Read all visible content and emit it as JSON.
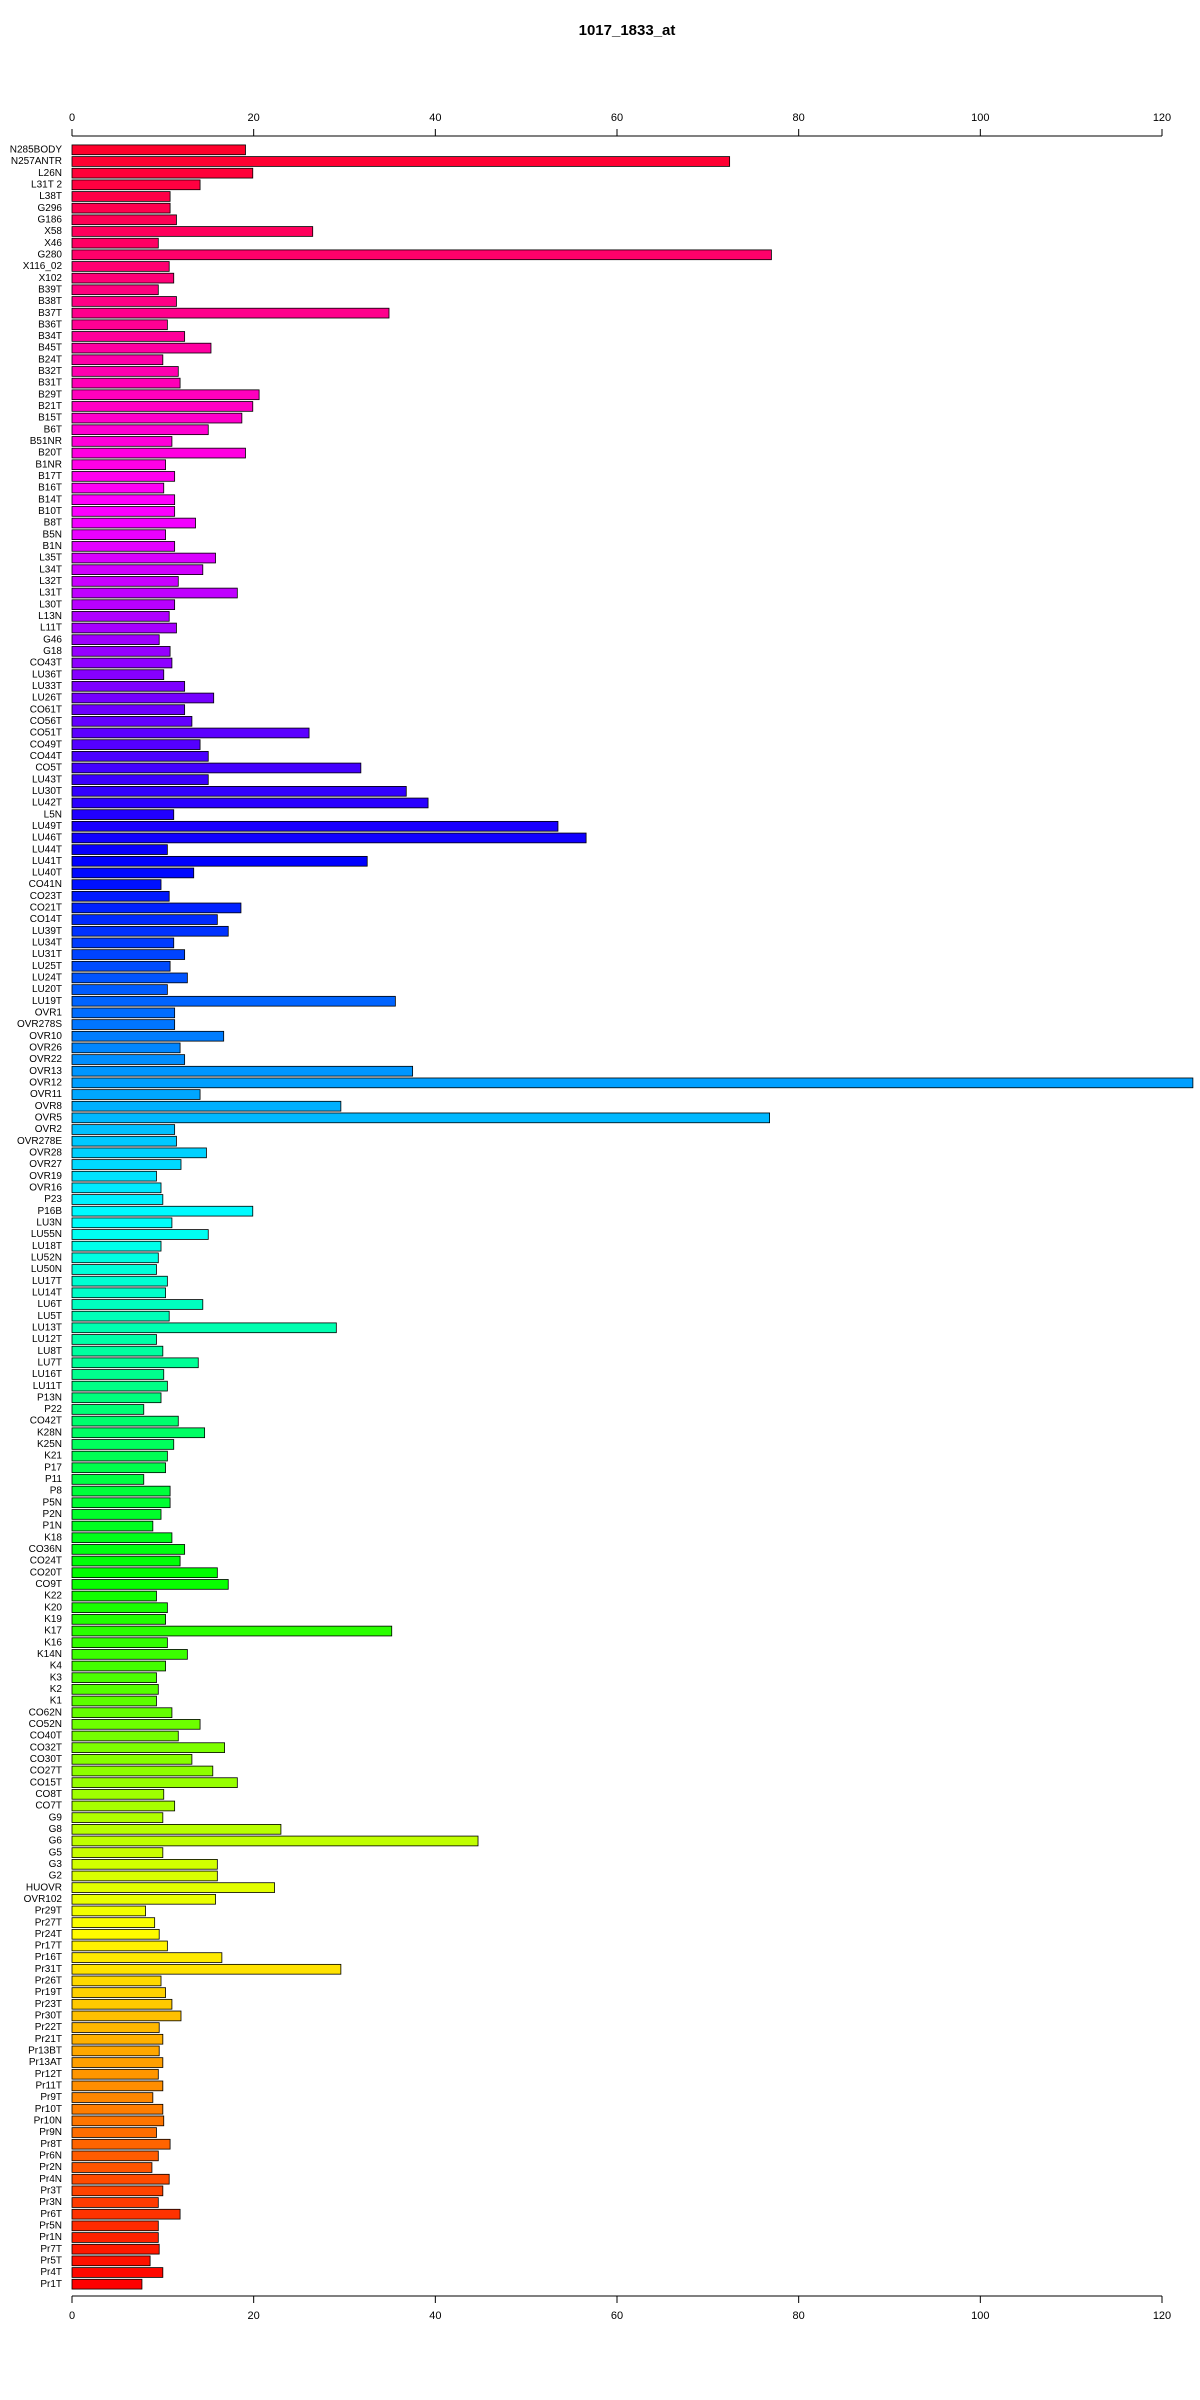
{
  "chart_data": {
    "type": "barh",
    "title": "1017_1833_at",
    "categories": [
      "N285BODY",
      "N257ANTR",
      "L26N",
      "L31T 2",
      "L38T",
      "G296",
      "G186",
      "X58",
      "X46",
      "G280",
      "X116_02",
      "X102",
      "B39T",
      "B38T",
      "B37T",
      "B36T",
      "B34T",
      "B45T",
      "B24T",
      "B32T",
      "B31T",
      "B29T",
      "B21T",
      "B15T",
      "B6T",
      "B51NR",
      "B20T",
      "B1NR",
      "B17T",
      "B16T",
      "B14T",
      "B10T",
      "B8T",
      "B5N",
      "B1N",
      "L35T",
      "L34T",
      "L32T",
      "L31T",
      "L30T",
      "L13N",
      "L11T",
      "G46",
      "G18",
      "CO43T",
      "LU36T",
      "LU33T",
      "LU26T",
      "CO61T",
      "CO56T",
      "CO51T",
      "CO49T",
      "CO44T",
      "CO5T",
      "LU43T",
      "LU30T",
      "LU42T",
      "L5N",
      "LU49T",
      "LU46T",
      "LU44T",
      "LU41T",
      "LU40T",
      "CO41N",
      "CO23T",
      "CO21T",
      "CO14T",
      "LU39T",
      "LU34T",
      "LU31T",
      "LU25T",
      "LU24T",
      "LU20T",
      "LU19T",
      "OVR1",
      "OVR278S",
      "OVR10",
      "OVR26",
      "OVR22",
      "OVR13",
      "OVR12",
      "OVR11",
      "OVR8",
      "OVR5",
      "OVR2",
      "OVR278E",
      "OVR28",
      "OVR27",
      "OVR19",
      "OVR16",
      "P23",
      "P16B",
      "LU3N",
      "LU55N",
      "LU18T",
      "LU52N",
      "LU50N",
      "LU17T",
      "LU14T",
      "LU6T",
      "LU5T",
      "LU13T",
      "LU12T",
      "LU8T",
      "LU7T",
      "LU16T",
      "LU11T",
      "P13N",
      "P22",
      "CO42T",
      "K28N",
      "K25N",
      "K21",
      "P17",
      "P11",
      "P8",
      "P5N",
      "P2N",
      "P1N",
      "K18",
      "CO36N",
      "CO24T",
      "CO20T",
      "CO9T",
      "K22",
      "K20",
      "K19",
      "K17",
      "K16",
      "K14N",
      "K4",
      "K3",
      "K2",
      "K1",
      "CO62N",
      "CO52N",
      "CO40T",
      "CO32T",
      "CO30T",
      "CO27T",
      "CO15T",
      "CO8T",
      "CO7T",
      "G9",
      "G8",
      "G6",
      "G5",
      "G3",
      "G2",
      "HUOVR",
      "OVR102",
      "Pr29T",
      "Pr27T",
      "Pr24T",
      "Pr17T",
      "Pr16T",
      "Pr31T",
      "Pr26T",
      "Pr19T",
      "Pr23T",
      "Pr30T",
      "Pr22T",
      "Pr21T",
      "Pr13BT",
      "Pr13AT",
      "Pr12T",
      "Pr11T",
      "Pr9T",
      "Pr10T",
      "Pr10N",
      "Pr9N",
      "Pr8T",
      "Pr6N",
      "Pr2N",
      "Pr4N",
      "Pr3T",
      "Pr3N",
      "Pr6T",
      "Pr5N",
      "Pr1N",
      "Pr7T",
      "Pr5T",
      "Pr4T",
      "Pr1T"
    ],
    "values": [
      19.1,
      72.4,
      19.9,
      14.1,
      10.8,
      10.8,
      11.5,
      26.5,
      9.5,
      77.0,
      10.7,
      11.2,
      9.5,
      11.5,
      34.9,
      10.5,
      12.4,
      15.3,
      10.0,
      11.7,
      11.9,
      20.6,
      19.9,
      18.7,
      15.0,
      11.0,
      19.1,
      10.3,
      11.3,
      10.1,
      11.3,
      11.3,
      13.6,
      10.3,
      11.3,
      15.8,
      14.4,
      11.7,
      18.2,
      11.3,
      10.7,
      11.5,
      9.6,
      10.8,
      11.0,
      10.1,
      12.4,
      15.6,
      12.4,
      13.2,
      26.1,
      14.1,
      15.0,
      31.8,
      15.0,
      36.8,
      39.2,
      11.2,
      53.5,
      56.6,
      10.5,
      32.5,
      13.4,
      9.8,
      10.7,
      18.6,
      16.0,
      17.2,
      11.2,
      12.4,
      10.8,
      12.7,
      10.5,
      35.6,
      11.3,
      11.3,
      16.7,
      11.9,
      12.4,
      37.5,
      123.4,
      14.1,
      29.6,
      76.8,
      11.3,
      11.5,
      14.8,
      12.0,
      9.3,
      9.8,
      10.0,
      19.9,
      11.0,
      15.0,
      9.8,
      9.5,
      9.3,
      10.5,
      10.3,
      14.4,
      10.7,
      29.1,
      9.3,
      10.0,
      13.9,
      10.1,
      10.5,
      9.8,
      7.9,
      11.7,
      14.6,
      11.2,
      10.5,
      10.3,
      7.9,
      10.8,
      10.8,
      9.8,
      8.9,
      11.0,
      12.4,
      11.9,
      16.0,
      17.2,
      9.3,
      10.5,
      10.3,
      35.2,
      10.5,
      12.7,
      10.3,
      9.3,
      9.5,
      9.3,
      11.0,
      14.1,
      11.7,
      16.8,
      13.2,
      15.5,
      18.2,
      10.1,
      11.3,
      10.0,
      23.0,
      44.7,
      10.0,
      16.0,
      16.0,
      22.3,
      15.8,
      8.1,
      9.1,
      9.6,
      10.5,
      16.5,
      29.6,
      9.8,
      10.3,
      11.0,
      12.0,
      9.6,
      10.0,
      9.6,
      10.0,
      9.5,
      10.0,
      8.9,
      10.0,
      10.1,
      9.3,
      10.8,
      9.5,
      8.8,
      10.7,
      10.0,
      9.5,
      11.9,
      9.5,
      9.5,
      9.6,
      8.6,
      10.0,
      7.7
    ],
    "colors": [
      "#ff002b",
      "#ff00ff",
      "#0000ff",
      "#00ffff",
      "#00ff00",
      "#ffff00",
      "#ff0000"
    ],
    "xlim": [
      0,
      120
    ],
    "xticks": [
      0,
      20,
      40,
      60,
      80,
      100,
      120
    ]
  }
}
